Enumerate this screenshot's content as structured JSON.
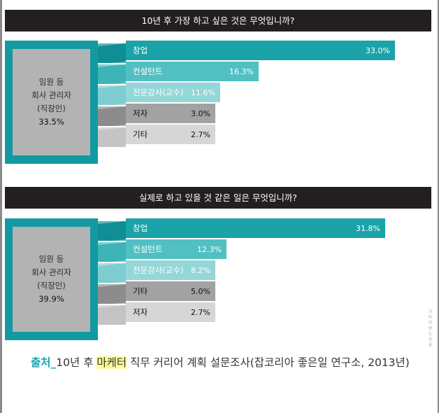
{
  "chart_data": [
    {
      "type": "bar",
      "title": "10년 후 가장 하고 싶은 것은 무엇입니까?",
      "group_label": [
        "임원 등",
        "회사 관리자",
        "(직장인)",
        "33.5%"
      ],
      "group_value": 33.5,
      "categories": [
        "창업",
        "컨설턴트",
        "전문강사(교수)",
        "저자",
        "기타"
      ],
      "values": [
        33.0,
        16.3,
        11.6,
        3.0,
        2.7
      ],
      "value_labels": [
        "33.0%",
        "16.3%",
        "11.6%",
        "3.0%",
        "2.7%"
      ],
      "colors": [
        "#1aa3a8",
        "#52c0c3",
        "#95d6d8",
        "#a2a2a3",
        "#d6d6d7"
      ]
    },
    {
      "type": "bar",
      "title": "실제로 하고 있을 것 같은 일은 무엇입니까?",
      "group_label": [
        "임원 등",
        "회사 관리자",
        "(직장인)",
        "39.9%"
      ],
      "group_value": 39.9,
      "categories": [
        "창업",
        "컨설턴트",
        "전문강사(교수)",
        "기타",
        "저자"
      ],
      "values": [
        31.8,
        12.3,
        8.2,
        5.0,
        2.7
      ],
      "value_labels": [
        "31.8%",
        "12.3%",
        "8.2%",
        "5.0%",
        "2.7%"
      ],
      "colors": [
        "#1aa3a8",
        "#52c0c3",
        "#95d6d8",
        "#a2a2a3",
        "#d6d6d7"
      ]
    }
  ],
  "source": {
    "label": "출처_",
    "text_before": "10년 후 ",
    "highlight": "마케터",
    "text_after": " 직무 커리어 계획 설문조사(잡코리아 좋은일 연구소, 2013년)"
  },
  "side_text": "가 자 의 보 도 자 료"
}
